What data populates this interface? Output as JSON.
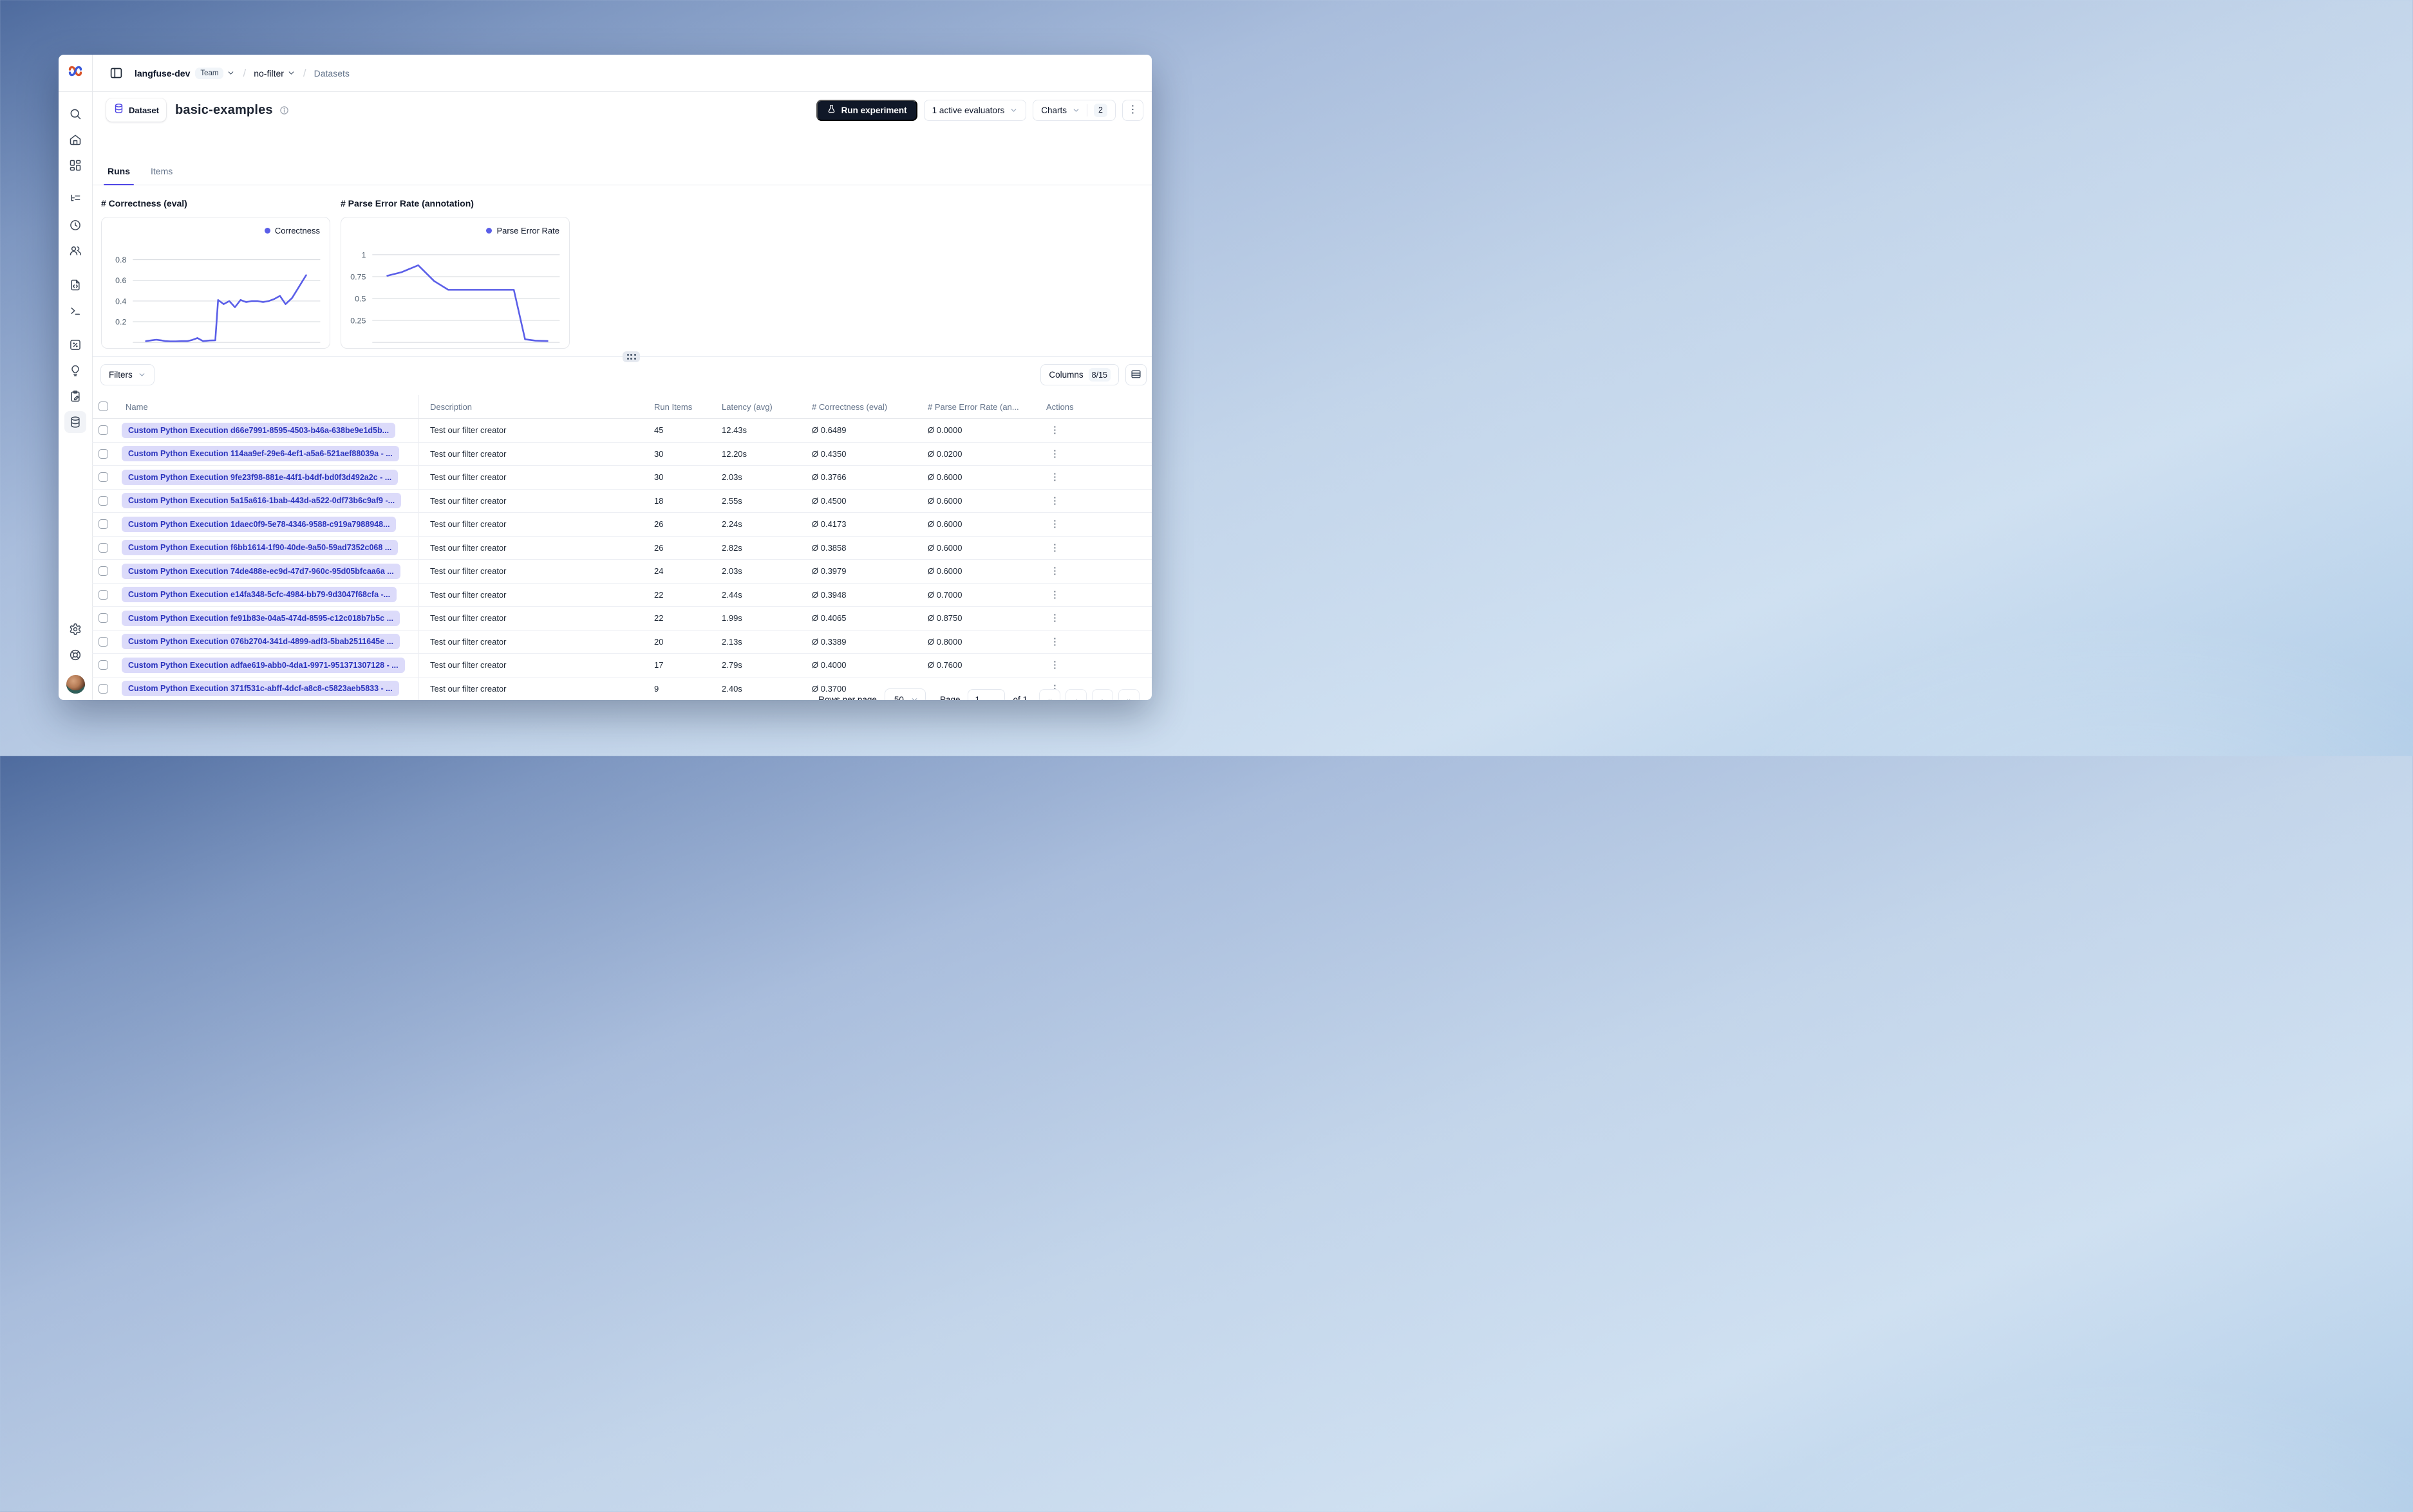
{
  "topbar": {
    "project": "langfuse-dev",
    "project_badge": "Team",
    "environment": "no-filter",
    "section": "Datasets"
  },
  "sidebar": {
    "logo_icon": "langfuse-logo",
    "items": [
      {
        "id": "search",
        "icon": "search-icon",
        "group": 1,
        "active": false
      },
      {
        "id": "home",
        "icon": "home-icon",
        "group": 1,
        "active": false
      },
      {
        "id": "dashboards",
        "icon": "dashboard-grid-icon",
        "group": 1,
        "active": false
      },
      {
        "id": "tracing",
        "icon": "tracing-tree-icon",
        "group": 2,
        "active": false
      },
      {
        "id": "sessions",
        "icon": "clock-icon",
        "group": 2,
        "active": false
      },
      {
        "id": "users",
        "icon": "users-icon",
        "group": 2,
        "active": false
      },
      {
        "id": "prompts",
        "icon": "file-code-icon",
        "group": 3,
        "active": false
      },
      {
        "id": "playground",
        "icon": "terminal-icon",
        "group": 3,
        "active": false
      },
      {
        "id": "evaluation",
        "icon": "square-percent-icon",
        "group": 4,
        "active": false
      },
      {
        "id": "llm-judge",
        "icon": "lightbulb-icon",
        "group": 4,
        "active": false
      },
      {
        "id": "annotation",
        "icon": "clipboard-pen-icon",
        "group": 4,
        "active": false
      },
      {
        "id": "datasets",
        "icon": "database-icon",
        "group": 4,
        "active": true
      }
    ],
    "bottom_items": [
      {
        "id": "settings",
        "icon": "gear-icon"
      },
      {
        "id": "support",
        "icon": "lifebuoy-icon"
      }
    ]
  },
  "header": {
    "badge_icon": "database-icon",
    "badge_label": "Dataset",
    "title": "basic-examples",
    "info_icon": "info-icon",
    "run_button": "Run experiment",
    "run_button_icon": "flask-icon",
    "evaluators_button": "1 active evaluators",
    "charts_button": "Charts",
    "charts_count": "2",
    "accent_color": "#4f46e5",
    "run_button_bg": "#101828"
  },
  "tabs": [
    {
      "label": "Runs",
      "active": true
    },
    {
      "label": "Items",
      "active": false
    }
  ],
  "chart_data": [
    {
      "type": "line",
      "title": "# Correctness (eval)",
      "legend": "Correctness",
      "color": "#5a5ee8",
      "grid": true,
      "legend_position": "top-right",
      "ylim": [
        0,
        0.95
      ],
      "yticks": [
        {
          "v": 0.2,
          "label": "0.2"
        },
        {
          "v": 0.4,
          "label": "0.4"
        },
        {
          "v": 0.6,
          "label": "0.6"
        },
        {
          "v": 0.8,
          "label": "0.8"
        }
      ],
      "series": [
        {
          "name": "Correctness",
          "points": [
            [
              0.07,
              0.012
            ],
            [
              0.1,
              0.02
            ],
            [
              0.125,
              0.025
            ],
            [
              0.15,
              0.02
            ],
            [
              0.175,
              0.012
            ],
            [
              0.2,
              0.01
            ],
            [
              0.23,
              0.01
            ],
            [
              0.26,
              0.012
            ],
            [
              0.29,
              0.012
            ],
            [
              0.315,
              0.022
            ],
            [
              0.345,
              0.042
            ],
            [
              0.375,
              0.012
            ],
            [
              0.41,
              0.018
            ],
            [
              0.44,
              0.02
            ],
            [
              0.455,
              0.41
            ],
            [
              0.485,
              0.37
            ],
            [
              0.515,
              0.4
            ],
            [
              0.545,
              0.34
            ],
            [
              0.575,
              0.41
            ],
            [
              0.605,
              0.39
            ],
            [
              0.635,
              0.4
            ],
            [
              0.665,
              0.4
            ],
            [
              0.695,
              0.39
            ],
            [
              0.725,
              0.4
            ],
            [
              0.755,
              0.42
            ],
            [
              0.785,
              0.45
            ],
            [
              0.815,
              0.37
            ],
            [
              0.85,
              0.43
            ],
            [
              0.925,
              0.65
            ]
          ]
        }
      ]
    },
    {
      "type": "line",
      "title": "# Parse Error Rate (annotation)",
      "legend": "Parse Error Rate",
      "color": "#5a5ee8",
      "grid": true,
      "legend_position": "top-right",
      "ylim": [
        0,
        1.12
      ],
      "yticks": [
        {
          "v": 0.25,
          "label": "0.25"
        },
        {
          "v": 0.5,
          "label": "0.5"
        },
        {
          "v": 0.75,
          "label": "0.75"
        },
        {
          "v": 1,
          "label": "1"
        }
      ],
      "series": [
        {
          "name": "Parse Error Rate",
          "points": [
            [
              0.08,
              0.76
            ],
            [
              0.155,
              0.8
            ],
            [
              0.245,
              0.88
            ],
            [
              0.33,
              0.7
            ],
            [
              0.405,
              0.6
            ],
            [
              0.5,
              0.6
            ],
            [
              0.6,
              0.6
            ],
            [
              0.7,
              0.6
            ],
            [
              0.755,
              0.6
            ],
            [
              0.815,
              0.035
            ],
            [
              0.87,
              0.02
            ],
            [
              0.935,
              0.015
            ]
          ]
        }
      ]
    }
  ],
  "toolbar": {
    "filters_label": "Filters",
    "columns_label": "Columns",
    "columns_badge": "8/15",
    "row_height_icon": "rows-icon"
  },
  "table": {
    "columns": [
      {
        "label": "Name"
      },
      {
        "label": "Description"
      },
      {
        "label": "Run Items"
      },
      {
        "label": "Latency (avg)"
      },
      {
        "label": "# Correctness (eval)"
      },
      {
        "label": "# Parse Error Rate (an..."
      },
      {
        "label": "Actions"
      }
    ],
    "rows": [
      {
        "name": "Custom Python Execution d66e7991-8595-4503-b46a-638be9e1d5b...",
        "description": "Test our filter creator",
        "run_items": "45",
        "latency": "12.43s",
        "correctness": "Ø 0.6489",
        "parse_error_rate": "Ø 0.0000"
      },
      {
        "name": "Custom Python Execution 114aa9ef-29e6-4ef1-a5a6-521aef88039a - ...",
        "description": "Test our filter creator",
        "run_items": "30",
        "latency": "12.20s",
        "correctness": "Ø 0.4350",
        "parse_error_rate": "Ø 0.0200"
      },
      {
        "name": "Custom Python Execution 9fe23f98-881e-44f1-b4df-bd0f3d492a2c - ...",
        "description": "Test our filter creator",
        "run_items": "30",
        "latency": "2.03s",
        "correctness": "Ø 0.3766",
        "parse_error_rate": "Ø 0.6000"
      },
      {
        "name": "Custom Python Execution 5a15a616-1bab-443d-a522-0df73b6c9af9 -...",
        "description": "Test our filter creator",
        "run_items": "18",
        "latency": "2.55s",
        "correctness": "Ø 0.4500",
        "parse_error_rate": "Ø 0.6000"
      },
      {
        "name": "Custom Python Execution 1daec0f9-5e78-4346-9588-c919a7988948...",
        "description": "Test our filter creator",
        "run_items": "26",
        "latency": "2.24s",
        "correctness": "Ø 0.4173",
        "parse_error_rate": "Ø 0.6000"
      },
      {
        "name": "Custom Python Execution f6bb1614-1f90-40de-9a50-59ad7352c068 ...",
        "description": "Test our filter creator",
        "run_items": "26",
        "latency": "2.82s",
        "correctness": "Ø 0.3858",
        "parse_error_rate": "Ø 0.6000"
      },
      {
        "name": "Custom Python Execution 74de488e-ec9d-47d7-960c-95d05bfcaa6a ...",
        "description": "Test our filter creator",
        "run_items": "24",
        "latency": "2.03s",
        "correctness": "Ø 0.3979",
        "parse_error_rate": "Ø 0.6000"
      },
      {
        "name": "Custom Python Execution e14fa348-5cfc-4984-bb79-9d3047f68cfa -...",
        "description": "Test our filter creator",
        "run_items": "22",
        "latency": "2.44s",
        "correctness": "Ø 0.3948",
        "parse_error_rate": "Ø 0.7000"
      },
      {
        "name": "Custom Python Execution fe91b83e-04a5-474d-8595-c12c018b7b5c ...",
        "description": "Test our filter creator",
        "run_items": "22",
        "latency": "1.99s",
        "correctness": "Ø 0.4065",
        "parse_error_rate": "Ø 0.8750"
      },
      {
        "name": "Custom Python Execution 076b2704-341d-4899-adf3-5bab2511645e ...",
        "description": "Test our filter creator",
        "run_items": "20",
        "latency": "2.13s",
        "correctness": "Ø 0.3389",
        "parse_error_rate": "Ø 0.8000"
      },
      {
        "name": "Custom Python Execution adfae619-abb0-4da1-9971-951371307128 - ...",
        "description": "Test our filter creator",
        "run_items": "17",
        "latency": "2.79s",
        "correctness": "Ø 0.4000",
        "parse_error_rate": "Ø 0.7600"
      },
      {
        "name": "Custom Python Execution 371f531c-abff-4dcf-a8c8-c5823aeb5833 - ...",
        "description": "Test our filter creator",
        "run_items": "9",
        "latency": "2.40s",
        "correctness": "Ø 0.3700",
        "parse_error_rate": ""
      }
    ]
  },
  "pagination": {
    "rows_per_page_label": "Rows per page",
    "rows_per_page": "50",
    "page_label": "Page",
    "page": "1",
    "of_label": "of 1",
    "buttons": [
      {
        "id": "first-page",
        "glyph": "«"
      },
      {
        "id": "prev-page",
        "glyph": "‹"
      },
      {
        "id": "next-page",
        "glyph": "›"
      },
      {
        "id": "last-page",
        "glyph": "»"
      }
    ]
  },
  "colors": {
    "accent": "#4f46e5",
    "chart_line": "#5a5ee8",
    "name_chip_bg": "#dcdbfa",
    "name_chip_text": "#2b34bd",
    "run_button_bg": "#101828"
  }
}
